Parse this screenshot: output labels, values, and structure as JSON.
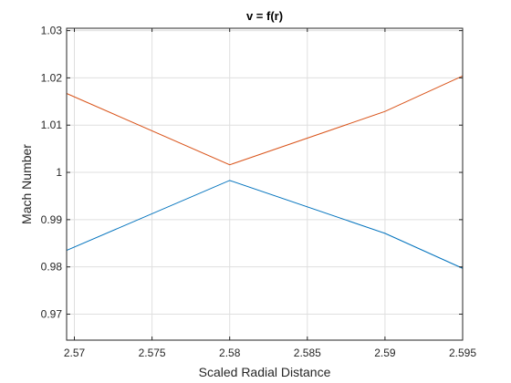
{
  "chart_data": {
    "type": "line",
    "title": "v = f(r)",
    "xlabel": "Scaled Radial Distance",
    "ylabel": "Mach Number",
    "xlim": [
      2.5695,
      2.595
    ],
    "ylim": [
      0.9645,
      1.0305
    ],
    "grid": true,
    "x_ticks": [
      2.57,
      2.575,
      2.58,
      2.585,
      2.59,
      2.595
    ],
    "x_tick_labels": [
      "2.57",
      "2.575",
      "2.58",
      "2.585",
      "2.59",
      "2.595"
    ],
    "y_ticks": [
      0.97,
      0.98,
      0.99,
      1.0,
      1.01,
      1.02,
      1.03
    ],
    "y_tick_labels": [
      "0.97",
      "0.98",
      "0.99",
      "1",
      "1.01",
      "1.02",
      "1.03"
    ],
    "series": [
      {
        "color": "#0072BD",
        "x": [
          2.5695,
          2.58,
          2.59,
          2.595
        ],
        "y": [
          0.9835,
          0.9983,
          0.9871,
          0.9797
        ]
      },
      {
        "color": "#D95319",
        "x": [
          2.5695,
          2.58,
          2.59,
          2.595
        ],
        "y": [
          1.0167,
          1.0016,
          1.0129,
          1.0204
        ]
      }
    ]
  }
}
